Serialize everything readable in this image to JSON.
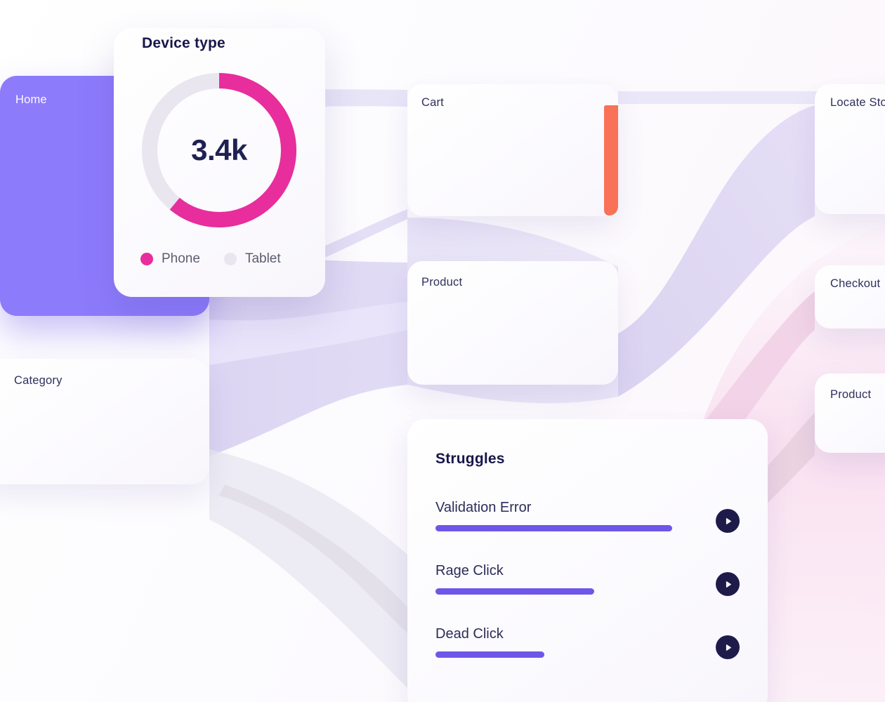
{
  "colors": {
    "accent-purple": "#8c7bfb",
    "donut-pink": "#e82d9d",
    "donut-track": "#e9e6f0",
    "bar-purple": "#6e56e8",
    "cart-exit-orange": "#f97157",
    "navy": "#1e1b4b",
    "title-navy": "#17174b",
    "label-navy": "#30305c",
    "legend-gray": "#5d5d6e"
  },
  "device_card": {
    "title": "Device type",
    "total_label": "3.4k",
    "legend": [
      {
        "label": "Phone"
      },
      {
        "label": "Tablet"
      }
    ]
  },
  "nodes": {
    "home": {
      "label": "Home"
    },
    "cart": {
      "label": "Cart"
    },
    "locate_store": {
      "label": "Locate Store"
    },
    "product_mid": {
      "label": "Product"
    },
    "checkout": {
      "label": "Checkout"
    },
    "product_right": {
      "label": "Product"
    },
    "category": {
      "label": "Category"
    }
  },
  "struggles": {
    "title": "Struggles",
    "items": [
      {
        "label": "Validation Error",
        "value_pct": 100
      },
      {
        "label": "Rage Click",
        "value_pct": 67
      },
      {
        "label": "Dead Click",
        "value_pct": 46
      }
    ]
  },
  "chart_data": [
    {
      "type": "pie",
      "variant": "donut",
      "title": "Device type",
      "center_label": "3.4k",
      "segments": [
        {
          "label": "Phone",
          "pct": 61,
          "color": "#e82d9d"
        },
        {
          "label": "Tablet",
          "pct": 39,
          "color": "#e9e6f0"
        }
      ],
      "legend_position": "bottom"
    },
    {
      "type": "bar",
      "title": "Struggles",
      "orientation": "horizontal",
      "categories": [
        "Validation Error",
        "Rage Click",
        "Dead Click"
      ],
      "values": [
        100,
        67,
        46
      ],
      "unit": "relative-%"
    }
  ]
}
